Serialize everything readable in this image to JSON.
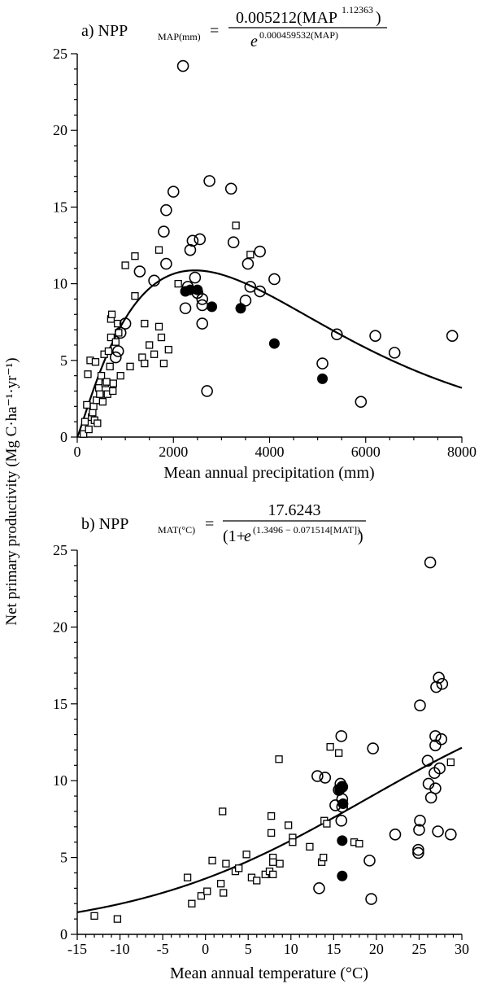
{
  "shared_ylabel": "Net primary productivity (Mg C·ha⁻¹·yr⁻¹)",
  "chart_data": [
    {
      "id": "a",
      "type": "scatter",
      "title_prefix": "a) NPP",
      "title_sub": "MAP(mm)",
      "equation": {
        "numerator": "0.005212(MAP",
        "numerator_exp": "1.12363",
        "numerator_close": ")",
        "denominator_base": "e",
        "denominator_exp": "0.000459532(MAP)"
      },
      "xlabel": "Mean annual precipitation (mm)",
      "ylabel": "",
      "xlim": [
        0,
        8000
      ],
      "ylim": [
        0,
        25
      ],
      "xticks": [
        0,
        2000,
        4000,
        6000,
        8000
      ],
      "yticks": [
        0,
        5,
        10,
        15,
        20,
        25
      ],
      "grid": false,
      "fit_curve": "0.005212*x^1.12363/exp(0.000459532*x)",
      "series": [
        {
          "marker": "square-open",
          "points": [
            [
              130,
              0.2
            ],
            [
              160,
              1.0
            ],
            [
              200,
              2.1
            ],
            [
              220,
              4.1
            ],
            [
              240,
              0.5
            ],
            [
              270,
              5.0
            ],
            [
              300,
              1.3
            ],
            [
              320,
              1.6
            ],
            [
              340,
              2.0
            ],
            [
              360,
              1.1
            ],
            [
              380,
              4.9
            ],
            [
              400,
              2.4
            ],
            [
              420,
              0.9
            ],
            [
              450,
              3.2
            ],
            [
              470,
              2.8
            ],
            [
              500,
              4.0
            ],
            [
              530,
              2.3
            ],
            [
              560,
              5.4
            ],
            [
              580,
              3.5
            ],
            [
              610,
              3.6
            ],
            [
              630,
              2.8
            ],
            [
              650,
              5.6
            ],
            [
              680,
              4.6
            ],
            [
              700,
              6.5
            ],
            [
              700,
              7.7
            ],
            [
              720,
              8.0
            ],
            [
              740,
              3.0
            ],
            [
              750,
              3.5
            ],
            [
              800,
              6.2
            ],
            [
              840,
              7.4
            ],
            [
              860,
              6.8
            ],
            [
              900,
              4.0
            ],
            [
              1000,
              11.2
            ],
            [
              1100,
              4.6
            ],
            [
              1200,
              11.8
            ],
            [
              1200,
              9.2
            ],
            [
              1350,
              5.2
            ],
            [
              1400,
              4.8
            ],
            [
              1400,
              7.4
            ],
            [
              1500,
              6.0
            ],
            [
              1600,
              5.4
            ],
            [
              1700,
              12.2
            ],
            [
              1700,
              7.2
            ],
            [
              1750,
              6.5
            ],
            [
              1800,
              4.8
            ],
            [
              1900,
              5.7
            ],
            [
              2100,
              10.0
            ],
            [
              3300,
              13.8
            ],
            [
              3600,
              11.9
            ]
          ]
        },
        {
          "marker": "circle-open",
          "points": [
            [
              800,
              5.2
            ],
            [
              850,
              5.6
            ],
            [
              900,
              6.8
            ],
            [
              1000,
              7.4
            ],
            [
              1300,
              10.8
            ],
            [
              1600,
              10.2
            ],
            [
              1800,
              13.4
            ],
            [
              1850,
              14.8
            ],
            [
              1850,
              11.3
            ],
            [
              2000,
              16.0
            ],
            [
              2200,
              24.2
            ],
            [
              2250,
              8.4
            ],
            [
              2300,
              9.8
            ],
            [
              2350,
              12.2
            ],
            [
              2400,
              12.8
            ],
            [
              2450,
              10.4
            ],
            [
              2500,
              9.4
            ],
            [
              2550,
              12.9
            ],
            [
              2600,
              9.0
            ],
            [
              2600,
              8.6
            ],
            [
              2600,
              7.4
            ],
            [
              2700,
              3.0
            ],
            [
              2750,
              16.7
            ],
            [
              3200,
              16.2
            ],
            [
              3250,
              12.7
            ],
            [
              3500,
              8.9
            ],
            [
              3550,
              11.3
            ],
            [
              3600,
              9.8
            ],
            [
              3800,
              9.5
            ],
            [
              3800,
              12.1
            ],
            [
              4100,
              10.3
            ],
            [
              5100,
              4.8
            ],
            [
              5400,
              6.7
            ],
            [
              5900,
              2.3
            ],
            [
              6200,
              6.6
            ],
            [
              6600,
              5.5
            ],
            [
              7800,
              6.6
            ]
          ]
        },
        {
          "marker": "circle-filled",
          "points": [
            [
              2250,
              9.5
            ],
            [
              2350,
              9.6
            ],
            [
              2500,
              9.6
            ],
            [
              2800,
              8.5
            ],
            [
              3400,
              8.4
            ],
            [
              4100,
              6.1
            ],
            [
              5100,
              3.8
            ]
          ]
        }
      ]
    },
    {
      "id": "b",
      "type": "scatter",
      "title_prefix": "b) NPP",
      "title_sub": "MAT(°C)",
      "equation": {
        "numerator": "17.6243",
        "denominator_open": "(1+",
        "denominator_base": "e",
        "denominator_exp": "(1.3496 − 0.071514[MAT])",
        "denominator_close": ")"
      },
      "xlabel": "Mean annual temperature (°C)",
      "ylabel": "",
      "xlim": [
        -15,
        30
      ],
      "ylim": [
        0,
        25
      ],
      "xticks": [
        -15,
        -10,
        -5,
        0,
        5,
        10,
        15,
        20,
        25,
        30
      ],
      "yticks": [
        0,
        5,
        10,
        15,
        20,
        25
      ],
      "grid": false,
      "fit_curve": "17.6243/(1+exp(1.3496-0.071514*x))",
      "series": [
        {
          "marker": "square-open",
          "points": [
            [
              -13,
              1.2
            ],
            [
              -10.3,
              1.0
            ],
            [
              -2.1,
              3.7
            ],
            [
              -1.6,
              2.0
            ],
            [
              -0.5,
              2.5
            ],
            [
              0.2,
              2.8
            ],
            [
              0.8,
              4.8
            ],
            [
              2.0,
              8.0
            ],
            [
              1.8,
              3.3
            ],
            [
              2.1,
              2.7
            ],
            [
              2.4,
              4.6
            ],
            [
              3.5,
              4.1
            ],
            [
              3.9,
              4.3
            ],
            [
              4.8,
              5.2
            ],
            [
              5.4,
              3.7
            ],
            [
              6.0,
              3.5
            ],
            [
              7.0,
              3.9
            ],
            [
              7.5,
              4.1
            ],
            [
              7.7,
              7.7
            ],
            [
              7.7,
              6.6
            ],
            [
              7.9,
              5.0
            ],
            [
              7.9,
              4.7
            ],
            [
              7.9,
              3.9
            ],
            [
              8.7,
              4.6
            ],
            [
              8.6,
              11.4
            ],
            [
              9.7,
              7.1
            ],
            [
              10.2,
              6.3
            ],
            [
              10.2,
              6.0
            ],
            [
              12.2,
              5.7
            ],
            [
              13.6,
              4.7
            ],
            [
              13.8,
              5.0
            ],
            [
              13.9,
              7.4
            ],
            [
              14.2,
              7.2
            ],
            [
              14.6,
              12.2
            ],
            [
              15.6,
              11.8
            ],
            [
              17.4,
              6.0
            ],
            [
              18.0,
              5.9
            ],
            [
              28.7,
              11.2
            ]
          ]
        },
        {
          "marker": "circle-open",
          "points": [
            [
              13.1,
              10.3
            ],
            [
              13.3,
              3.0
            ],
            [
              14.0,
              10.2
            ],
            [
              15.2,
              8.4
            ],
            [
              15.6,
              9.4
            ],
            [
              15.8,
              9.8
            ],
            [
              15.9,
              12.9
            ],
            [
              16.0,
              9.6
            ],
            [
              16.0,
              8.8
            ],
            [
              16.0,
              8.3
            ],
            [
              15.9,
              7.4
            ],
            [
              19.2,
              4.8
            ],
            [
              19.4,
              2.3
            ],
            [
              19.6,
              12.1
            ],
            [
              22.2,
              6.5
            ],
            [
              24.9,
              5.5
            ],
            [
              24.9,
              5.3
            ],
            [
              25.0,
              6.8
            ],
            [
              25.1,
              7.4
            ],
            [
              25.1,
              14.9
            ],
            [
              26.0,
              11.3
            ],
            [
              26.1,
              9.8
            ],
            [
              26.3,
              24.2
            ],
            [
              26.4,
              8.9
            ],
            [
              26.8,
              10.5
            ],
            [
              26.9,
              12.3
            ],
            [
              26.9,
              9.5
            ],
            [
              26.9,
              12.9
            ],
            [
              27.0,
              16.1
            ],
            [
              27.2,
              6.7
            ],
            [
              27.3,
              16.7
            ],
            [
              27.4,
              10.8
            ],
            [
              27.6,
              12.7
            ],
            [
              27.7,
              16.3
            ],
            [
              28.7,
              6.5
            ]
          ]
        },
        {
          "marker": "circle-filled",
          "points": [
            [
              15.7,
              9.4
            ],
            [
              16.0,
              9.6
            ],
            [
              16.1,
              8.5
            ],
            [
              16.0,
              6.1
            ],
            [
              16.0,
              3.8
            ]
          ]
        }
      ]
    }
  ]
}
